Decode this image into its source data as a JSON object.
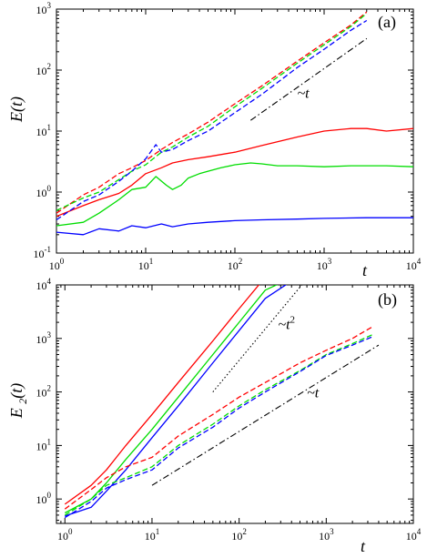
{
  "chart_data": [
    {
      "type": "line",
      "panel_label": "(a)",
      "xlabel": "t",
      "ylabel": "E(t)",
      "xscale": "log",
      "yscale": "log",
      "xlim": [
        1,
        10000
      ],
      "ylim": [
        0.1,
        1000
      ],
      "x_ticks": [
        {
          "base": "10",
          "exp": "0"
        },
        {
          "base": "10",
          "exp": "1"
        },
        {
          "base": "10",
          "exp": "2"
        },
        {
          "base": "10",
          "exp": "3"
        },
        {
          "base": "10",
          "exp": "4"
        }
      ],
      "y_ticks": [
        {
          "base": "10",
          "exp": "-1"
        },
        {
          "base": "10",
          "exp": "0"
        },
        {
          "base": "10",
          "exp": "1"
        },
        {
          "base": "10",
          "exp": "2"
        },
        {
          "base": "10",
          "exp": "3"
        }
      ],
      "series": [
        {
          "color": "#ff0000",
          "style": "solid",
          "x": [
            1,
            2,
            3,
            5,
            7,
            10,
            15,
            20,
            30,
            50,
            100,
            200,
            500,
            1000,
            2000,
            3000,
            5000,
            10000
          ],
          "y": [
            0.4,
            0.6,
            0.75,
            0.95,
            1.3,
            2.0,
            2.5,
            3.0,
            3.4,
            3.8,
            4.5,
            5.8,
            8.0,
            10,
            11,
            11,
            10,
            11
          ]
        },
        {
          "color": "#00dd00",
          "style": "solid",
          "x": [
            1,
            2,
            3,
            5,
            7,
            10,
            13,
            17,
            20,
            25,
            30,
            40,
            50,
            70,
            100,
            150,
            200,
            300,
            500,
            1000,
            2000,
            5000,
            10000
          ],
          "y": [
            0.28,
            0.32,
            0.45,
            0.75,
            1.1,
            1.2,
            1.8,
            1.3,
            1.1,
            1.3,
            1.7,
            2.0,
            2.2,
            2.5,
            2.8,
            3.0,
            2.9,
            2.7,
            2.7,
            2.6,
            2.7,
            2.7,
            2.6
          ]
        },
        {
          "color": "#0000ff",
          "style": "solid",
          "x": [
            1,
            2,
            3,
            5,
            7,
            10,
            15,
            20,
            30,
            50,
            100,
            200,
            500,
            1000,
            3000,
            10000
          ],
          "y": [
            0.22,
            0.2,
            0.25,
            0.23,
            0.28,
            0.26,
            0.3,
            0.27,
            0.3,
            0.32,
            0.34,
            0.35,
            0.36,
            0.37,
            0.38,
            0.38
          ]
        },
        {
          "color": "#ff0000",
          "style": "dashed",
          "x": [
            1,
            2,
            3,
            5,
            7,
            10,
            15,
            20,
            30,
            50,
            100,
            200,
            500,
            1000,
            2000,
            3000
          ],
          "y": [
            0.45,
            0.9,
            1.2,
            2.0,
            2.5,
            3.3,
            5.0,
            6.5,
            9,
            14,
            28,
            55,
            140,
            280,
            550,
            900
          ]
        },
        {
          "color": "#00dd00",
          "style": "dashed",
          "x": [
            1,
            2,
            3,
            5,
            7,
            10,
            15,
            20,
            30,
            50,
            100,
            200,
            500,
            1000,
            2000,
            3000
          ],
          "y": [
            0.5,
            0.8,
            1.0,
            1.6,
            2.2,
            2.8,
            4.5,
            5.5,
            8,
            12,
            25,
            50,
            130,
            260,
            520,
            850
          ]
        },
        {
          "color": "#0000ff",
          "style": "dashed",
          "x": [
            1,
            2,
            3,
            5,
            7,
            10,
            13,
            15,
            20,
            30,
            50,
            100,
            200,
            500,
            1000,
            2000,
            3000
          ],
          "y": [
            0.35,
            0.7,
            0.9,
            1.5,
            2.2,
            3.5,
            6.0,
            4.5,
            5.0,
            7,
            10,
            20,
            40,
            110,
            220,
            450,
            650
          ]
        },
        {
          "color": "#000000",
          "style": "dashdot",
          "role": "guide",
          "x": [
            150,
            3000
          ],
          "y": [
            15,
            330
          ]
        }
      ],
      "annotations": [
        {
          "text": "~t",
          "x": 500,
          "y": 35
        }
      ]
    },
    {
      "type": "line",
      "panel_label": "(b)",
      "xlabel": "t",
      "ylabel": "E2(t)",
      "xscale": "log",
      "yscale": "log",
      "xlim": [
        0.8,
        10000
      ],
      "ylim": [
        0.35,
        10000
      ],
      "x_ticks": [
        {
          "base": "10",
          "exp": "0"
        },
        {
          "base": "10",
          "exp": "1"
        },
        {
          "base": "10",
          "exp": "2"
        },
        {
          "base": "10",
          "exp": "3"
        },
        {
          "base": "10",
          "exp": "4"
        }
      ],
      "y_ticks": [
        {
          "base": "10",
          "exp": "0"
        },
        {
          "base": "10",
          "exp": "1"
        },
        {
          "base": "10",
          "exp": "2"
        },
        {
          "base": "10",
          "exp": "3"
        },
        {
          "base": "10",
          "exp": "4"
        }
      ],
      "series": [
        {
          "color": "#ff0000",
          "style": "solid",
          "x": [
            1,
            2,
            3,
            5,
            10,
            20,
            50,
            100,
            200,
            360
          ],
          "y": [
            0.8,
            1.8,
            3.5,
            10,
            38,
            150,
            900,
            3600,
            14000,
            14000
          ]
        },
        {
          "color": "#00dd00",
          "style": "solid",
          "x": [
            1,
            2,
            3,
            5,
            10,
            20,
            50,
            100,
            200,
            420
          ],
          "y": [
            0.55,
            1.0,
            2.0,
            5.5,
            20,
            80,
            500,
            2000,
            8000,
            14000
          ]
        },
        {
          "color": "#0000ff",
          "style": "solid",
          "x": [
            1,
            2,
            3,
            5,
            10,
            20,
            50,
            100,
            200,
            470
          ],
          "y": [
            0.48,
            0.7,
            1.4,
            3.5,
            14,
            55,
            350,
            1400,
            5600,
            14000
          ]
        },
        {
          "color": "#ff0000",
          "style": "dashed",
          "x": [
            1,
            2,
            3,
            5,
            10,
            20,
            50,
            100,
            200,
            500,
            1000,
            2000,
            3500
          ],
          "y": [
            0.65,
            1.5,
            2.5,
            4,
            6,
            15,
            38,
            80,
            150,
            350,
            600,
            1000,
            1700
          ]
        },
        {
          "color": "#00dd00",
          "style": "dashed",
          "x": [
            1,
            2,
            3,
            5,
            10,
            20,
            50,
            100,
            200,
            500,
            1000,
            2000,
            3500
          ],
          "y": [
            0.5,
            1.0,
            1.8,
            2.5,
            4,
            10,
            25,
            55,
            110,
            250,
            500,
            800,
            1200
          ]
        },
        {
          "color": "#0000ff",
          "style": "dashed",
          "x": [
            1,
            2,
            3,
            5,
            10,
            20,
            50,
            100,
            200,
            500,
            1000,
            2000,
            3500
          ],
          "y": [
            0.45,
            0.9,
            1.6,
            2.3,
            3.5,
            9,
            22,
            50,
            100,
            240,
            480,
            750,
            1100
          ]
        },
        {
          "color": "#000000",
          "style": "dotted",
          "role": "guide",
          "x": [
            50,
            600
          ],
          "y": [
            100,
            13000
          ]
        },
        {
          "color": "#000000",
          "style": "dashdot",
          "role": "guide",
          "x": [
            10,
            4000
          ],
          "y": [
            1.8,
            750
          ]
        }
      ],
      "annotations": [
        {
          "text": "~t",
          "sup": "2",
          "x": 280,
          "y": 1500
        },
        {
          "text": "~t",
          "sup": "",
          "x": 600,
          "y": 80
        }
      ]
    }
  ]
}
